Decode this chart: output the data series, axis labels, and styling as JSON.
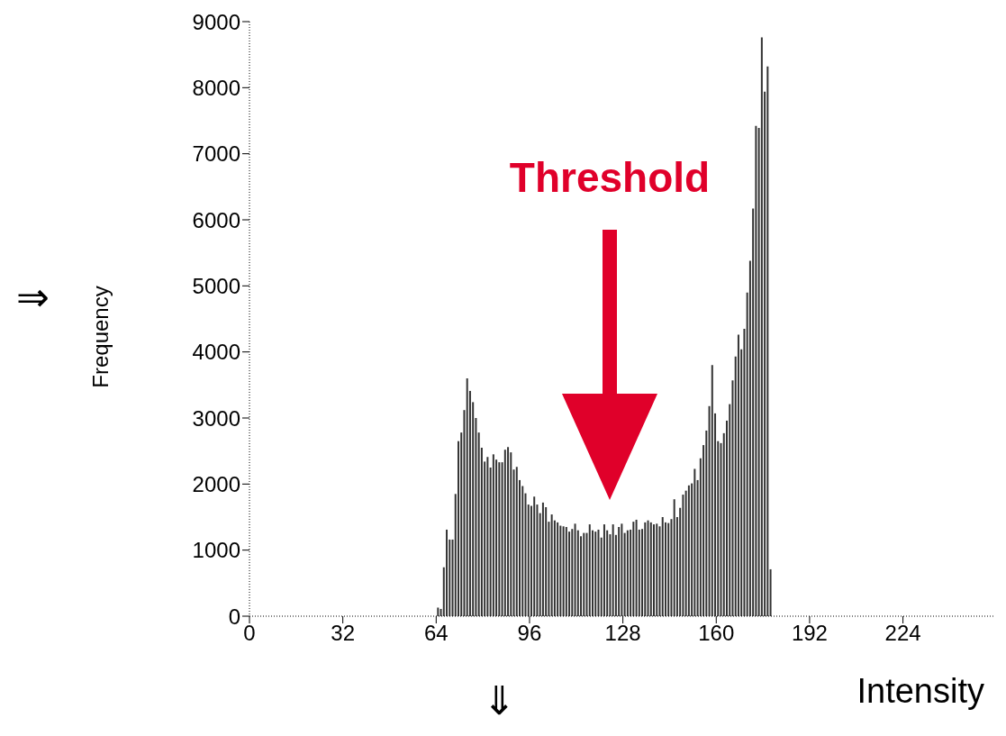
{
  "chart_data": {
    "type": "histogram",
    "xlabel": "Intensity",
    "ylabel": "Frequency",
    "bins": [
      64,
      65,
      66,
      67,
      68,
      69,
      70,
      71,
      72,
      73,
      74,
      75,
      76,
      77,
      78,
      79,
      80,
      81,
      82,
      83,
      84,
      85,
      86,
      87,
      88,
      89,
      90,
      91,
      92,
      93,
      94,
      95,
      96,
      97,
      98,
      99,
      100,
      101,
      102,
      103,
      104,
      105,
      106,
      107,
      108,
      109,
      110,
      111,
      112,
      113,
      114,
      115,
      116,
      117,
      118,
      119,
      120,
      121,
      122,
      123,
      124,
      125,
      126,
      127,
      128,
      129,
      130,
      131,
      132,
      133,
      134,
      135,
      136,
      137,
      138,
      139,
      140,
      141,
      142,
      143,
      144,
      145,
      146,
      147,
      148,
      149,
      150,
      151,
      152,
      153,
      154,
      155,
      156,
      157,
      158,
      159,
      160,
      161,
      162,
      163,
      164,
      165,
      166,
      167,
      168,
      169,
      170,
      171,
      172,
      173,
      174,
      175,
      176,
      177,
      178,
      179
    ],
    "values": [
      130,
      110,
      740,
      1310,
      1160,
      1160,
      1850,
      2650,
      2780,
      3120,
      3600,
      3410,
      3240,
      3000,
      2780,
      2550,
      2340,
      2410,
      2250,
      2450,
      2370,
      2330,
      2330,
      2520,
      2560,
      2480,
      2220,
      2260,
      2060,
      1970,
      1860,
      1690,
      1670,
      1810,
      1690,
      1560,
      1720,
      1650,
      1430,
      1540,
      1450,
      1420,
      1370,
      1360,
      1350,
      1280,
      1320,
      1400,
      1300,
      1210,
      1260,
      1260,
      1390,
      1300,
      1280,
      1310,
      1190,
      1390,
      1300,
      1240,
      1390,
      1230,
      1350,
      1400,
      1260,
      1300,
      1310,
      1430,
      1460,
      1310,
      1320,
      1420,
      1450,
      1420,
      1390,
      1400,
      1360,
      1500,
      1420,
      1410,
      1470,
      1770,
      1500,
      1640,
      1840,
      1900,
      1980,
      2010,
      2230,
      2060,
      2390,
      2590,
      2810,
      3180,
      3800,
      3070,
      2650,
      2620,
      2770,
      2960,
      3210,
      3570,
      3930,
      4260,
      4040,
      4350,
      4900,
      5380,
      6170,
      7420,
      7390,
      8760,
      7940,
      8320,
      710
    ],
    "color": "#333333",
    "xlim": [
      0,
      255
    ],
    "xticks": [
      0,
      32,
      64,
      96,
      128,
      160,
      192,
      224
    ],
    "ylim": [
      0,
      9000
    ],
    "yticks": [
      0,
      1000,
      2000,
      3000,
      4000,
      5000,
      6000,
      7000,
      8000,
      9000
    ],
    "annotations": [
      "⇒",
      "⇓",
      "Threshold"
    ]
  }
}
